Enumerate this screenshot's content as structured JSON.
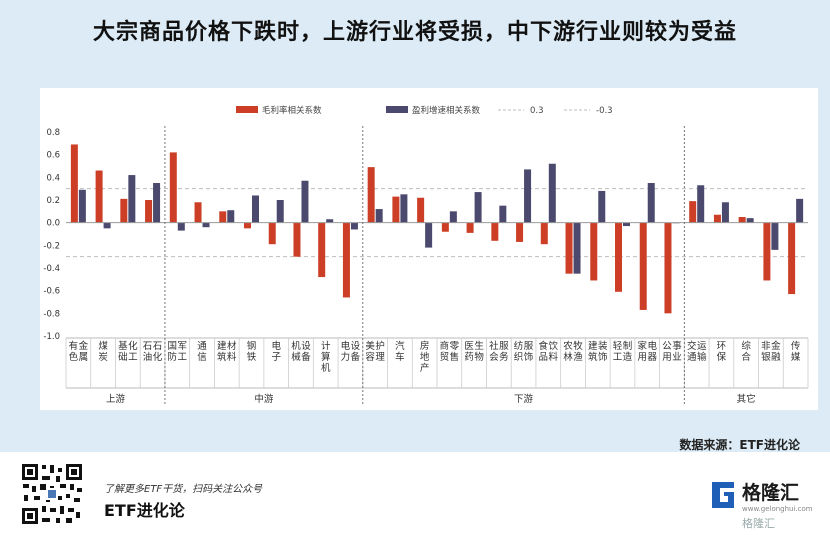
{
  "title": "大宗商品价格下跌时，上游行业将受损，中下游行业则较为受益",
  "source": "数据来源：ETF进化论",
  "footer": {
    "caption": "了解更多ETF干货，扫码关注公众号",
    "name": "ETF进化论"
  },
  "logo": {
    "name": "格隆汇",
    "sub": "www.gelonghui.com"
  },
  "watermark": "格隆汇",
  "colors": {
    "gross_margin": "#cc3f26",
    "profit_growth": "#4b4a6e",
    "ref_line": "#bdbdbd"
  },
  "chart_data": {
    "type": "bar",
    "ylim": [
      -1.0,
      0.8
    ],
    "yticks": [
      "0.8",
      "0.6",
      "0.4",
      "0.2",
      "0.0",
      "-0.2",
      "-0.4",
      "-0.6",
      "-0.8",
      "-1.0"
    ],
    "legend": [
      "毛利率相关系数",
      "盈利增速相关系数",
      "0.3",
      "-0.3"
    ],
    "ref_lines": [
      0.3,
      -0.3
    ],
    "categories": [
      "有色金属",
      "煤炭",
      "基础化工",
      "石油石化",
      "国防军工",
      "通信",
      "建筑材料",
      "钢铁",
      "电子",
      "机械设备",
      "计算机",
      "电力设备",
      "美容护理",
      "汽车",
      "房地产",
      "商贸零售",
      "医药生物",
      "社会服务",
      "纺织服饰",
      "食品饮料",
      "农林牧渔",
      "建筑装饰",
      "轻工制造",
      "家用电器",
      "公用事业",
      "交通运输",
      "环保",
      "综合",
      "非银金融",
      "传媒"
    ],
    "groups": [
      {
        "name": "上游",
        "start": 0,
        "end": 3
      },
      {
        "name": "中游",
        "start": 4,
        "end": 11
      },
      {
        "name": "下游",
        "start": 12,
        "end": 24
      },
      {
        "name": "其它",
        "start": 25,
        "end": 29
      }
    ],
    "series": [
      {
        "name": "毛利率相关系数",
        "values": [
          0.69,
          0.46,
          0.21,
          0.2,
          0.62,
          0.18,
          0.1,
          -0.05,
          -0.19,
          -0.3,
          -0.48,
          -0.66,
          0.49,
          0.23,
          0.22,
          -0.08,
          -0.09,
          -0.16,
          -0.17,
          -0.19,
          -0.45,
          -0.51,
          -0.61,
          -0.77,
          -0.8,
          0.19,
          0.07,
          0.05,
          -0.51,
          -0.63
        ]
      },
      {
        "name": "盈利增速相关系数",
        "values": [
          0.29,
          -0.05,
          0.42,
          0.35,
          -0.07,
          -0.04,
          0.11,
          0.24,
          0.2,
          0.37,
          0.03,
          -0.06,
          0.12,
          0.25,
          -0.22,
          0.1,
          0.27,
          0.15,
          0.47,
          0.52,
          -0.45,
          0.28,
          -0.03,
          0.35,
          0.0,
          0.33,
          0.18,
          0.04,
          -0.24,
          0.21
        ]
      }
    ]
  }
}
